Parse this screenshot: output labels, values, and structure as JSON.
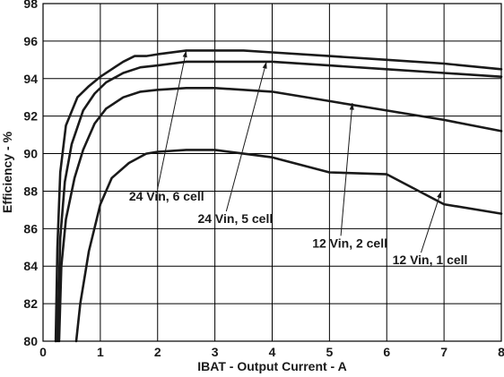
{
  "chart_data": {
    "type": "line",
    "xlabel": "IBAT - Output Current - A",
    "ylabel": "Efficiency - %",
    "xlim": [
      0,
      8
    ],
    "ylim": [
      80,
      98
    ],
    "x_ticks": [
      0,
      1,
      2,
      3,
      4,
      5,
      6,
      7,
      8
    ],
    "y_ticks": [
      80,
      82,
      84,
      86,
      88,
      90,
      92,
      94,
      96,
      98
    ],
    "grid": true,
    "series": [
      {
        "name": "24 Vin, 6 cell",
        "points": [
          [
            0.22,
            80
          ],
          [
            0.25,
            85
          ],
          [
            0.3,
            89
          ],
          [
            0.4,
            91.5
          ],
          [
            0.6,
            93
          ],
          [
            0.8,
            93.6
          ],
          [
            1.0,
            94.1
          ],
          [
            1.2,
            94.5
          ],
          [
            1.4,
            94.9
          ],
          [
            1.6,
            95.2
          ],
          [
            1.8,
            95.2
          ],
          [
            2.0,
            95.3
          ],
          [
            2.5,
            95.5
          ],
          [
            3.0,
            95.5
          ],
          [
            3.5,
            95.5
          ],
          [
            4.0,
            95.4
          ],
          [
            5.0,
            95.2
          ],
          [
            6.0,
            95.0
          ],
          [
            7.0,
            94.8
          ],
          [
            8.0,
            94.5
          ]
        ]
      },
      {
        "name": "24 Vin, 5 cell",
        "points": [
          [
            0.25,
            80
          ],
          [
            0.3,
            85.5
          ],
          [
            0.38,
            88.5
          ],
          [
            0.5,
            90.5
          ],
          [
            0.7,
            92.3
          ],
          [
            0.9,
            93.2
          ],
          [
            1.1,
            93.8
          ],
          [
            1.4,
            94.3
          ],
          [
            1.7,
            94.6
          ],
          [
            2.0,
            94.7
          ],
          [
            2.5,
            94.9
          ],
          [
            3.0,
            94.9
          ],
          [
            4.0,
            94.9
          ],
          [
            5.0,
            94.7
          ],
          [
            6.0,
            94.5
          ],
          [
            7.0,
            94.3
          ],
          [
            8.0,
            94.1
          ]
        ]
      },
      {
        "name": "12 Vin, 2 cell",
        "points": [
          [
            0.28,
            80
          ],
          [
            0.32,
            84
          ],
          [
            0.4,
            86.5
          ],
          [
            0.55,
            88.7
          ],
          [
            0.7,
            90.2
          ],
          [
            0.9,
            91.6
          ],
          [
            1.1,
            92.4
          ],
          [
            1.4,
            93.0
          ],
          [
            1.7,
            93.3
          ],
          [
            2.0,
            93.4
          ],
          [
            2.5,
            93.5
          ],
          [
            3.0,
            93.5
          ],
          [
            4.0,
            93.3
          ],
          [
            5.0,
            92.8
          ],
          [
            6.0,
            92.3
          ],
          [
            7.0,
            91.8
          ],
          [
            8.0,
            91.2
          ]
        ]
      },
      {
        "name": "12 Vin, 1 cell",
        "points": [
          [
            0.58,
            80
          ],
          [
            0.65,
            82
          ],
          [
            0.8,
            84.8
          ],
          [
            1.0,
            87.3
          ],
          [
            1.2,
            88.7
          ],
          [
            1.5,
            89.5
          ],
          [
            1.8,
            90.0
          ],
          [
            2.0,
            90.1
          ],
          [
            2.5,
            90.2
          ],
          [
            3.0,
            90.2
          ],
          [
            3.5,
            90.0
          ],
          [
            4.0,
            89.8
          ],
          [
            5.0,
            89.0
          ],
          [
            6.0,
            88.9
          ],
          [
            7.0,
            87.3
          ],
          [
            8.0,
            86.8
          ]
        ]
      }
    ],
    "annotations": [
      {
        "text": "24 Vin, 6 cell",
        "arrow_to": [
          2.5,
          95.5
        ],
        "label_at": [
          1.5,
          87.5
        ]
      },
      {
        "text": "24 Vin, 5 cell",
        "arrow_to": [
          3.9,
          94.9
        ],
        "label_at": [
          2.7,
          86.3
        ]
      },
      {
        "text": "12 Vin, 2 cell",
        "arrow_to": [
          5.4,
          92.7
        ],
        "label_at": [
          4.7,
          85.0
        ]
      },
      {
        "text": "12 Vin, 1 cell",
        "arrow_to": [
          6.95,
          88.0
        ],
        "label_at": [
          6.1,
          84.1
        ]
      }
    ]
  }
}
